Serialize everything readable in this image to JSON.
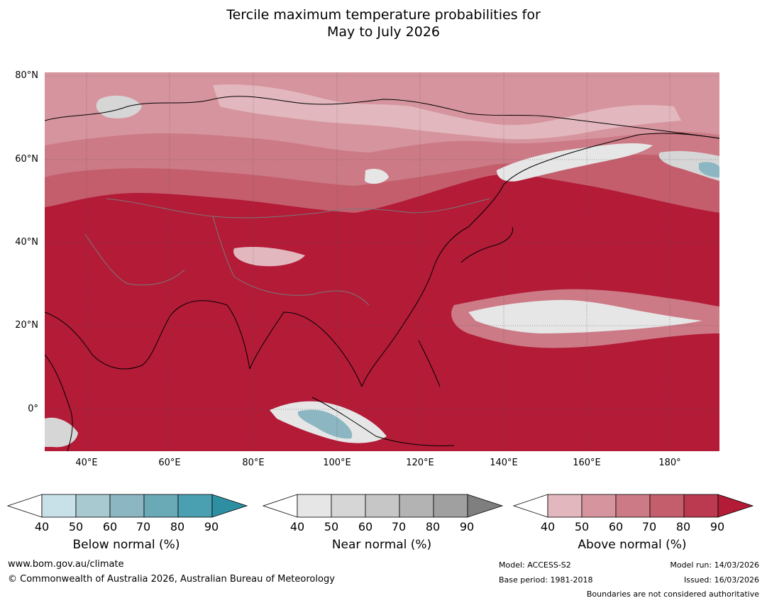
{
  "title": {
    "line1": "Tercile maximum temperature probabilities for",
    "line2": "May to July 2026"
  },
  "axes": {
    "lat_labels": [
      "80°N",
      "60°N",
      "40°N",
      "20°N",
      "0°"
    ],
    "lon_labels": [
      "40°E",
      "60°E",
      "80°E",
      "100°E",
      "120°E",
      "140°E",
      "160°E",
      "180°"
    ]
  },
  "colors": {
    "below": [
      "#ffffff",
      "#c8e1e8",
      "#a8c9cf",
      "#8bb6c2",
      "#6aaab7",
      "#4aa0b0",
      "#2e8fa3"
    ],
    "near": [
      "#ffffff",
      "#e6e6e6",
      "#d6d6d6",
      "#c6c6c6",
      "#b3b3b3",
      "#a0a0a0",
      "#7f7f7f"
    ],
    "above": [
      "#ffffff",
      "#e2b8be",
      "#d6959e",
      "#cc7a86",
      "#c45e6d",
      "#bb3a4f",
      "#b31b37"
    ],
    "ocean_dominant": "#b31b37"
  },
  "legend": {
    "ticks": [
      "40",
      "50",
      "60",
      "70",
      "80",
      "90"
    ],
    "below_label": "Below normal (%)",
    "near_label": "Near normal (%)",
    "above_label": "Above normal (%)"
  },
  "footer": {
    "website": "www.bom.gov.au/climate",
    "copyright": "© Commonwealth of Australia 2026, Australian Bureau of Meteorology",
    "model": "Model: ACCESS-S2",
    "base_period": "Base period: 1981-2018",
    "model_run": "Model run: 14/03/2026",
    "issued": "Issued: 16/03/2026",
    "disclaimer": "Boundaries are not considered authoritative"
  }
}
